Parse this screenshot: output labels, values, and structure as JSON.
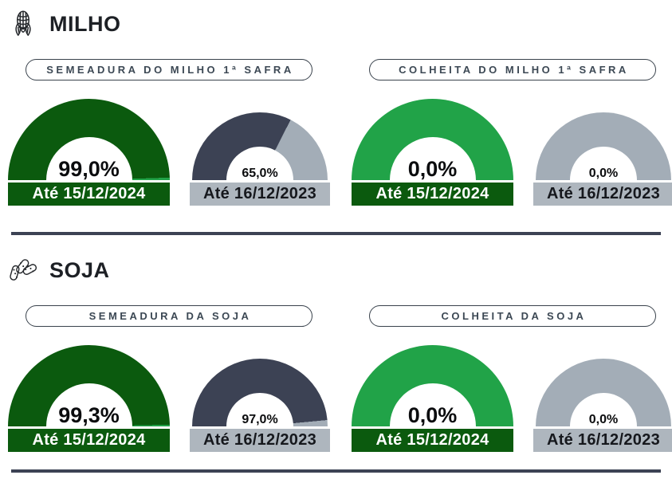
{
  "page": {
    "background": "#FFFFFF"
  },
  "colors": {
    "current_fill": "#0B5A0E",
    "current_rest": "#21A348",
    "previous_fill": "#3C4254",
    "previous_rest": "#A3ADB7",
    "current_bar_bg": "#0B5A0E",
    "current_bar_text": "#FFFFFF",
    "previous_bar_bg": "#AEB6BE",
    "previous_bar_text": "#16181D",
    "divider": "#3C4254"
  },
  "sections": [
    {
      "title": "MILHO",
      "icon": "corn-icon",
      "groups": [
        {
          "label": "SEMEADURA DO MILHO 1ª SAFRA",
          "gauges": [
            {
              "display": "99,0%",
              "value": 99.0,
              "date_label": "Até 15/12/2024",
              "style": "current",
              "size": "large"
            },
            {
              "display": "65,0%",
              "value": 65.0,
              "date_label": "Até 16/12/2023",
              "style": "previous",
              "size": "small"
            }
          ]
        },
        {
          "label": "COLHEITA DO MILHO 1ª SAFRA",
          "gauges": [
            {
              "display": "0,0%",
              "value": 0.0,
              "date_label": "Até 15/12/2024",
              "style": "current",
              "size": "large"
            },
            {
              "display": "0,0%",
              "value": 0.0,
              "date_label": "Até 16/12/2023",
              "style": "previous",
              "size": "small"
            }
          ]
        }
      ]
    },
    {
      "title": "SOJA",
      "icon": "soybean-icon",
      "groups": [
        {
          "label": "SEMEADURA DA SOJA",
          "gauges": [
            {
              "display": "99,3%",
              "value": 99.3,
              "date_label": "Até 15/12/2024",
              "style": "current",
              "size": "large"
            },
            {
              "display": "97,0%",
              "value": 97.0,
              "date_label": "Até 16/12/2023",
              "style": "previous",
              "size": "small"
            }
          ]
        },
        {
          "label": "COLHEITA DA SOJA",
          "gauges": [
            {
              "display": "0,0%",
              "value": 0.0,
              "date_label": "Até 15/12/2024",
              "style": "current",
              "size": "large"
            },
            {
              "display": "0,0%",
              "value": 0.0,
              "date_label": "Até 16/12/2023",
              "style": "previous",
              "size": "small"
            }
          ]
        }
      ]
    }
  ],
  "chart_data": [
    {
      "type": "gauge",
      "title": "SEMEADURA DO MILHO 1ª SAFRA",
      "unit": "%",
      "range": [
        0,
        100
      ],
      "series": [
        {
          "name": "Até 15/12/2024",
          "value": 99.0
        },
        {
          "name": "Até 16/12/2023",
          "value": 65.0
        }
      ]
    },
    {
      "type": "gauge",
      "title": "COLHEITA DO MILHO 1ª SAFRA",
      "unit": "%",
      "range": [
        0,
        100
      ],
      "series": [
        {
          "name": "Até 15/12/2024",
          "value": 0.0
        },
        {
          "name": "Até 16/12/2023",
          "value": 0.0
        }
      ]
    },
    {
      "type": "gauge",
      "title": "SEMEADURA DA SOJA",
      "unit": "%",
      "range": [
        0,
        100
      ],
      "series": [
        {
          "name": "Até 15/12/2024",
          "value": 99.3
        },
        {
          "name": "Até 16/12/2023",
          "value": 97.0
        }
      ]
    },
    {
      "type": "gauge",
      "title": "COLHEITA DA SOJA",
      "unit": "%",
      "range": [
        0,
        100
      ],
      "series": [
        {
          "name": "Até 15/12/2024",
          "value": 0.0
        },
        {
          "name": "Até 16/12/2023",
          "value": 0.0
        }
      ]
    }
  ]
}
